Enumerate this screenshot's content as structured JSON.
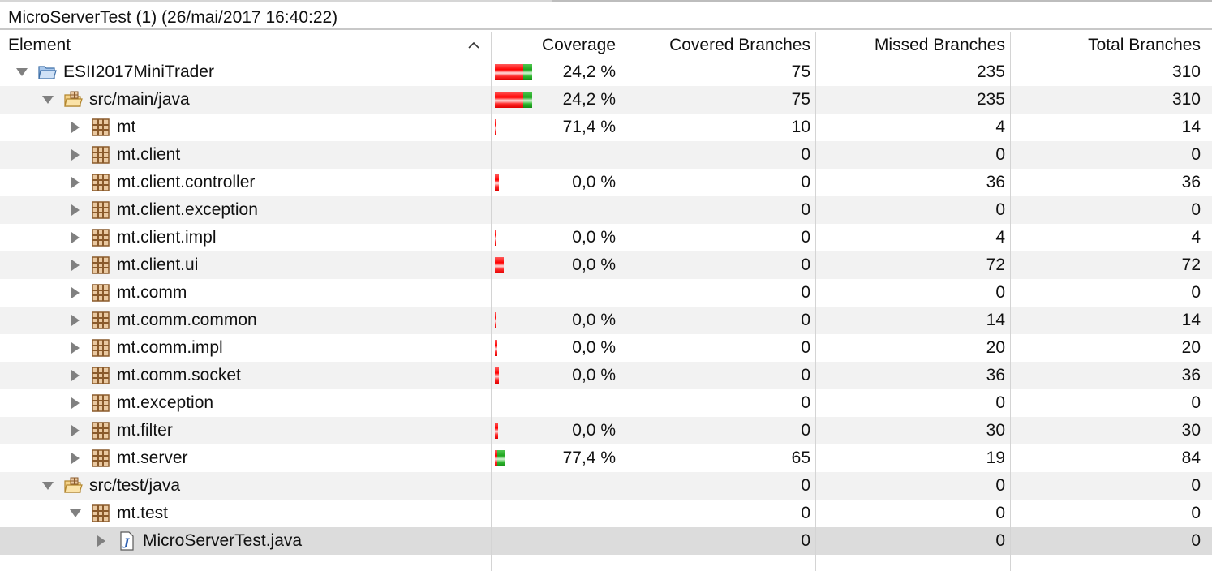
{
  "window": {
    "title": "MicroServerTest (1) (26/mai/2017 16:40:22)"
  },
  "columns": {
    "element": "Element",
    "coverage": "Coverage",
    "covered": "Covered Branches",
    "missed": "Missed Branches",
    "total": "Total Branches"
  },
  "rows": [
    {
      "label": "ESII2017MiniTrader",
      "depth": 0,
      "icon": "project-icon",
      "expanded": true,
      "coverage": "24,2 %",
      "covered": "75",
      "missed": "235",
      "total": "310",
      "bar": {
        "missed": 235,
        "covered": 75
      }
    },
    {
      "label": "src/main/java",
      "depth": 1,
      "icon": "source-folder-icon",
      "expanded": true,
      "coverage": "24,2 %",
      "covered": "75",
      "missed": "235",
      "total": "310",
      "bar": {
        "missed": 235,
        "covered": 75
      }
    },
    {
      "label": "mt",
      "depth": 2,
      "icon": "package-icon",
      "expanded": false,
      "coverage": "71,4 %",
      "covered": "10",
      "missed": "4",
      "total": "14",
      "bar": {
        "missed": 4,
        "covered": 10
      }
    },
    {
      "label": "mt.client",
      "depth": 2,
      "icon": "package-icon",
      "expanded": false,
      "coverage": "",
      "covered": "0",
      "missed": "0",
      "total": "0",
      "bar": null
    },
    {
      "label": "mt.client.controller",
      "depth": 2,
      "icon": "package-icon",
      "expanded": false,
      "coverage": "0,0 %",
      "covered": "0",
      "missed": "36",
      "total": "36",
      "bar": {
        "missed": 36,
        "covered": 0
      }
    },
    {
      "label": "mt.client.exception",
      "depth": 2,
      "icon": "package-icon",
      "expanded": false,
      "coverage": "",
      "covered": "0",
      "missed": "0",
      "total": "0",
      "bar": null
    },
    {
      "label": "mt.client.impl",
      "depth": 2,
      "icon": "package-icon",
      "expanded": false,
      "coverage": "0,0 %",
      "covered": "0",
      "missed": "4",
      "total": "4",
      "bar": {
        "missed": 4,
        "covered": 0
      }
    },
    {
      "label": "mt.client.ui",
      "depth": 2,
      "icon": "package-icon",
      "expanded": false,
      "coverage": "0,0 %",
      "covered": "0",
      "missed": "72",
      "total": "72",
      "bar": {
        "missed": 72,
        "covered": 0
      }
    },
    {
      "label": "mt.comm",
      "depth": 2,
      "icon": "package-icon",
      "expanded": false,
      "coverage": "",
      "covered": "0",
      "missed": "0",
      "total": "0",
      "bar": null
    },
    {
      "label": "mt.comm.common",
      "depth": 2,
      "icon": "package-icon",
      "expanded": false,
      "coverage": "0,0 %",
      "covered": "0",
      "missed": "14",
      "total": "14",
      "bar": {
        "missed": 14,
        "covered": 0
      }
    },
    {
      "label": "mt.comm.impl",
      "depth": 2,
      "icon": "package-icon",
      "expanded": false,
      "coverage": "0,0 %",
      "covered": "0",
      "missed": "20",
      "total": "20",
      "bar": {
        "missed": 20,
        "covered": 0
      }
    },
    {
      "label": "mt.comm.socket",
      "depth": 2,
      "icon": "package-icon",
      "expanded": false,
      "coverage": "0,0 %",
      "covered": "0",
      "missed": "36",
      "total": "36",
      "bar": {
        "missed": 36,
        "covered": 0
      }
    },
    {
      "label": "mt.exception",
      "depth": 2,
      "icon": "package-icon",
      "expanded": false,
      "coverage": "",
      "covered": "0",
      "missed": "0",
      "total": "0",
      "bar": null
    },
    {
      "label": "mt.filter",
      "depth": 2,
      "icon": "package-icon",
      "expanded": false,
      "coverage": "0,0 %",
      "covered": "0",
      "missed": "30",
      "total": "30",
      "bar": {
        "missed": 30,
        "covered": 0
      }
    },
    {
      "label": "mt.server",
      "depth": 2,
      "icon": "package-icon",
      "expanded": false,
      "coverage": "77,4 %",
      "covered": "65",
      "missed": "19",
      "total": "84",
      "bar": {
        "missed": 19,
        "covered": 65
      }
    },
    {
      "label": "src/test/java",
      "depth": 1,
      "icon": "source-folder-icon",
      "expanded": true,
      "coverage": "",
      "covered": "0",
      "missed": "0",
      "total": "0",
      "bar": null
    },
    {
      "label": "mt.test",
      "depth": 2,
      "icon": "package-icon",
      "expanded": true,
      "coverage": "",
      "covered": "0",
      "missed": "0",
      "total": "0",
      "bar": null
    },
    {
      "label": "MicroServerTest.java",
      "depth": 3,
      "icon": "java-file-icon",
      "expanded": false,
      "coverage": "",
      "covered": "0",
      "missed": "0",
      "total": "0",
      "bar": null,
      "selected": true
    }
  ],
  "colors": {
    "missed": "#ff0000",
    "covered": "#1da51d",
    "alt_row": "#f2f2f2",
    "selected_row": "#dcdcdc"
  }
}
